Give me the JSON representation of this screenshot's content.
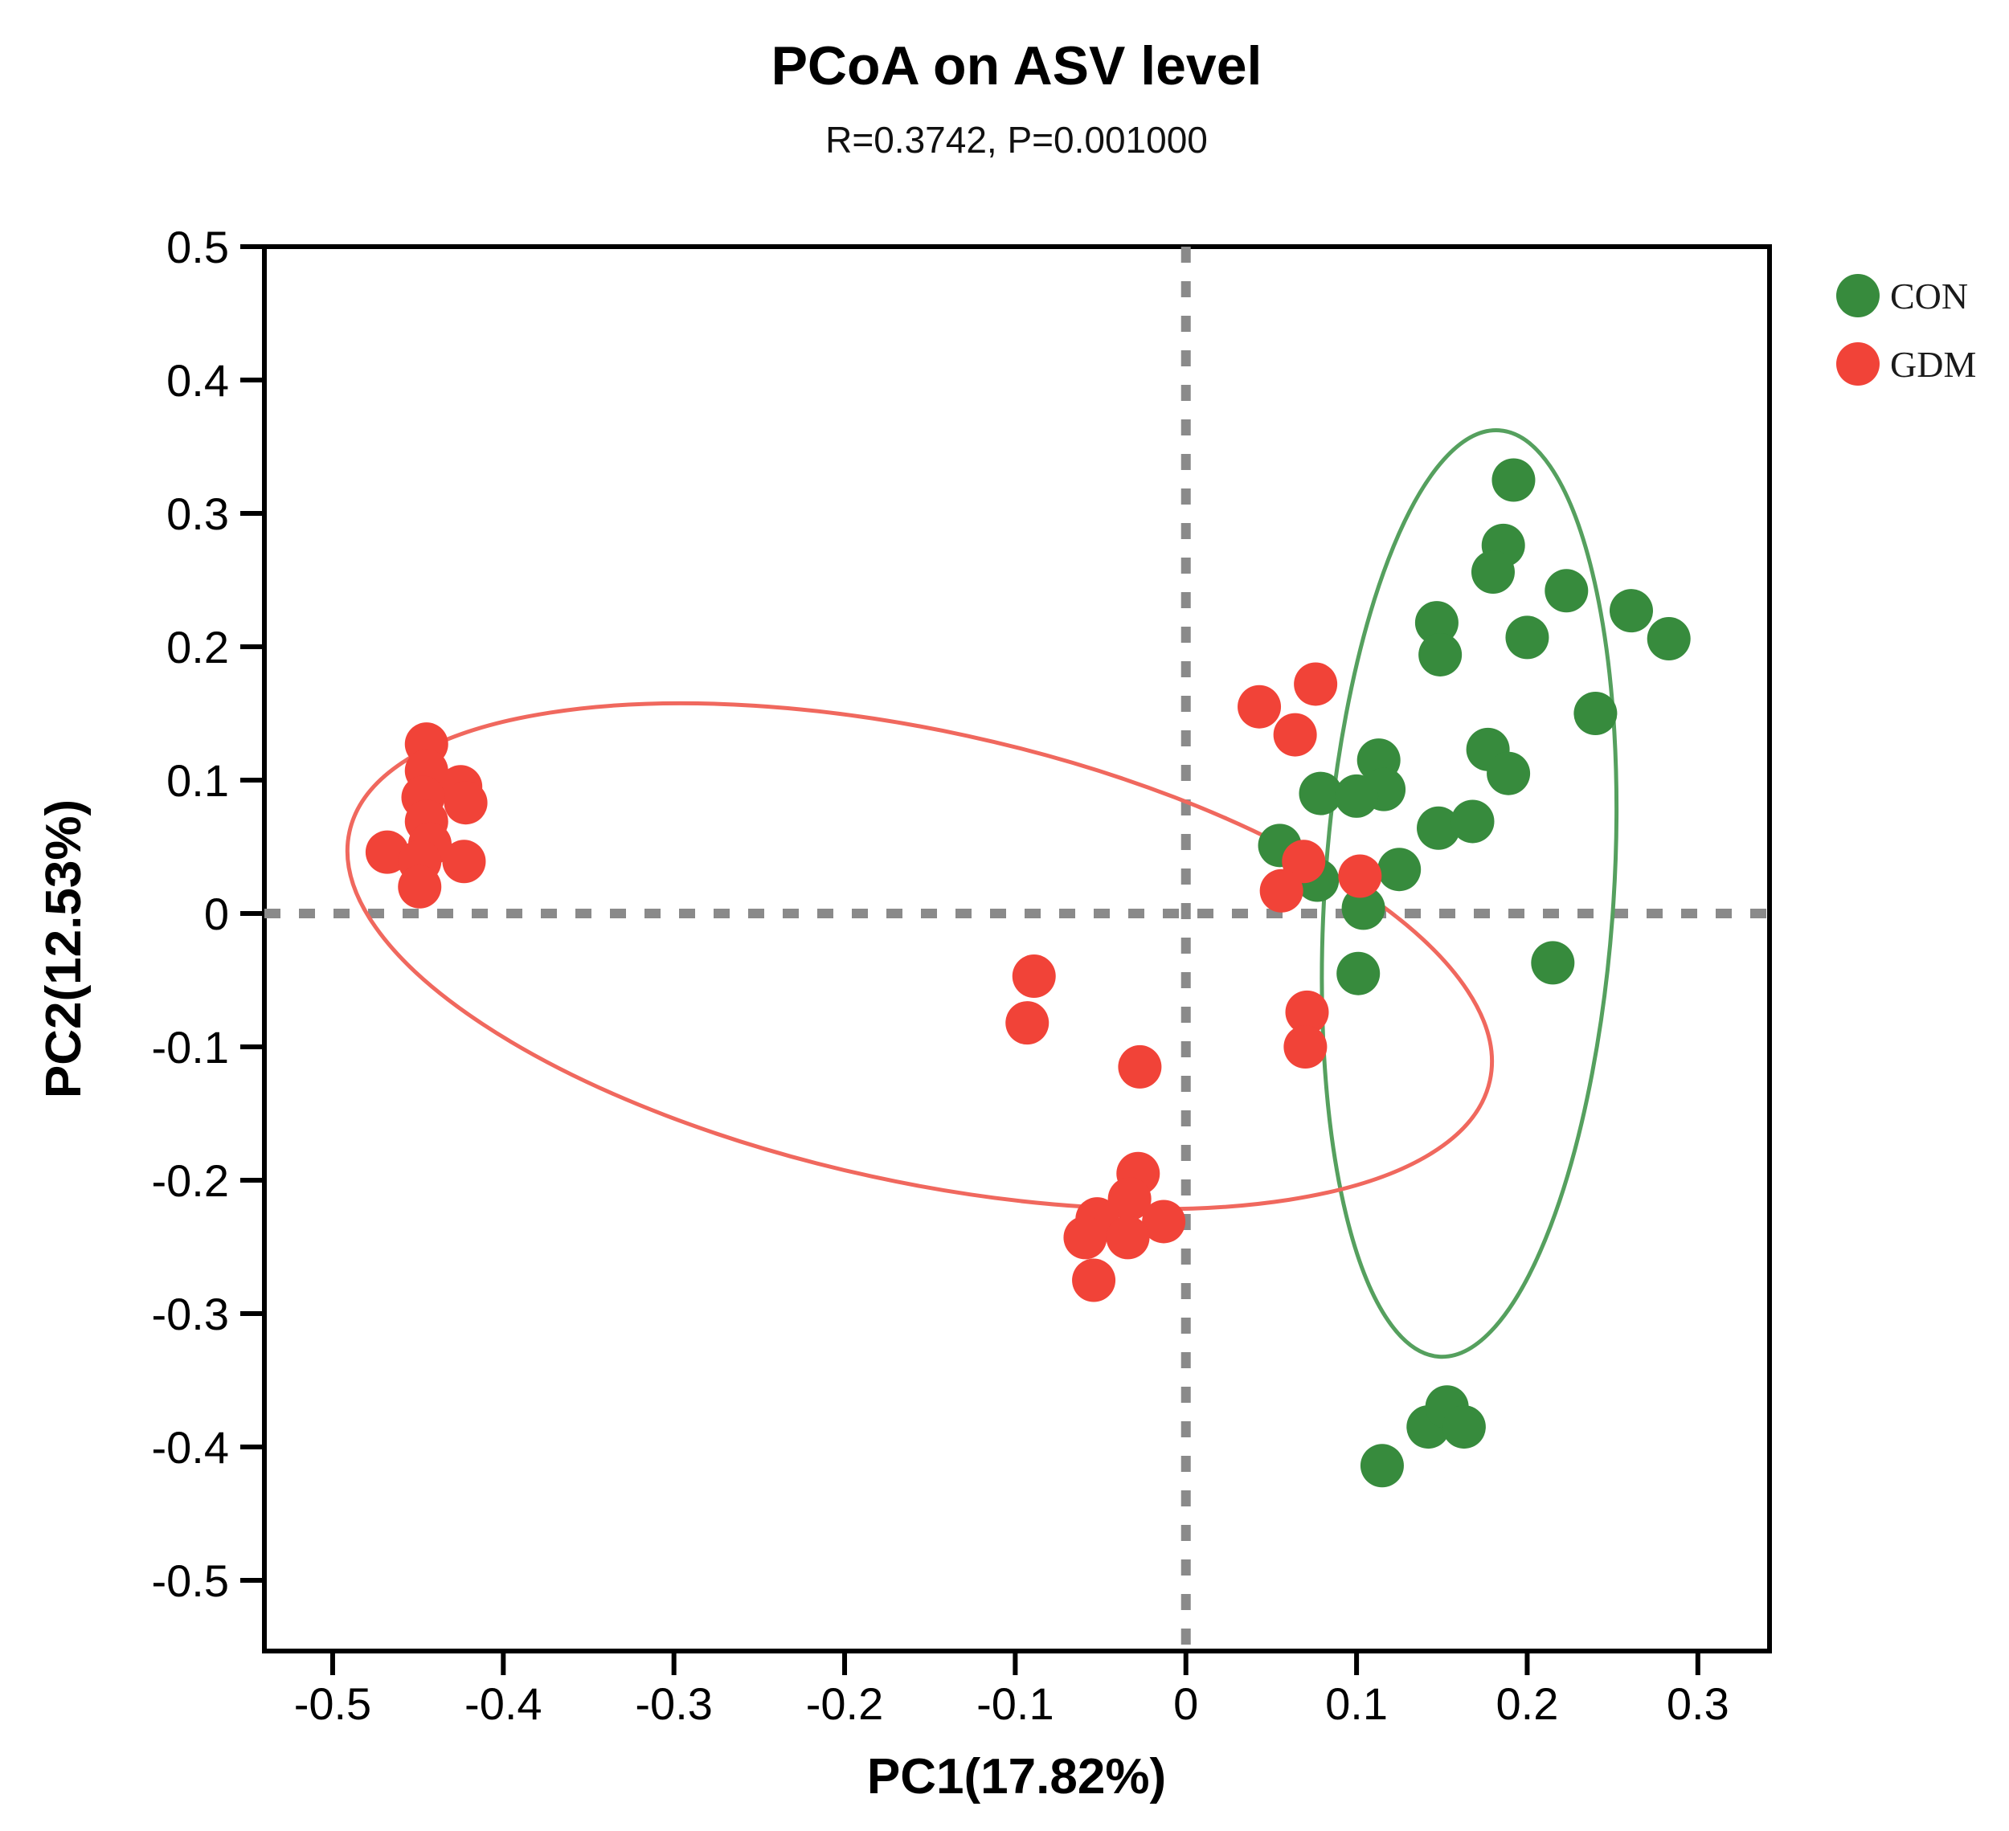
{
  "chart_data": {
    "type": "scatter",
    "title": "PCoA on ASV level",
    "subtitle": "R=0.3742, P=0.001000",
    "xlabel": "PC1(17.82%)",
    "ylabel": "PC2(12.53%)",
    "xlim": [
      -0.54,
      0.342
    ],
    "ylim": [
      -0.553,
      0.5
    ],
    "x_ticks": [
      -0.5,
      -0.4,
      -0.3,
      -0.2,
      -0.1,
      0,
      0.1,
      0.2,
      0.3
    ],
    "y_ticks": [
      0.5,
      0.4,
      0.3,
      0.2,
      0.1,
      0,
      -0.1,
      -0.2,
      -0.3,
      -0.4,
      -0.5
    ],
    "grid": false,
    "reference_lines": {
      "vertical_x": 0,
      "horizontal_y": 0,
      "color": "#8a8a8a",
      "style": "dotted"
    },
    "legend_position": "top-right-outside",
    "point_radius_px": 27,
    "series": [
      {
        "name": "CON",
        "color": "#378B3D",
        "points": [
          [
            0.192,
            0.325
          ],
          [
            0.186,
            0.276
          ],
          [
            0.18,
            0.256
          ],
          [
            0.147,
            0.218
          ],
          [
            0.149,
            0.194
          ],
          [
            0.2,
            0.207
          ],
          [
            0.223,
            0.242
          ],
          [
            0.261,
            0.227
          ],
          [
            0.283,
            0.206
          ],
          [
            0.24,
            0.15
          ],
          [
            0.177,
            0.123
          ],
          [
            0.189,
            0.105
          ],
          [
            0.113,
            0.115
          ],
          [
            0.116,
            0.093
          ],
          [
            0.079,
            0.09
          ],
          [
            0.1,
            0.088
          ],
          [
            0.148,
            0.064
          ],
          [
            0.168,
            0.069
          ],
          [
            0.055,
            0.051
          ],
          [
            0.077,
            0.025
          ],
          [
            0.125,
            0.033
          ],
          [
            0.104,
            0.004
          ],
          [
            0.101,
            -0.045
          ],
          [
            0.215,
            -0.037
          ],
          [
            0.115,
            -0.414
          ],
          [
            0.142,
            -0.385
          ],
          [
            0.153,
            -0.37
          ],
          [
            0.163,
            -0.385
          ]
        ]
      },
      {
        "name": "GDM",
        "color": "#F14338",
        "points": [
          [
            -0.445,
            0.127
          ],
          [
            -0.445,
            0.107
          ],
          [
            -0.425,
            0.095
          ],
          [
            -0.447,
            0.087
          ],
          [
            -0.422,
            0.083
          ],
          [
            -0.445,
            0.069
          ],
          [
            -0.443,
            0.052
          ],
          [
            -0.468,
            0.046
          ],
          [
            -0.449,
            0.039
          ],
          [
            -0.423,
            0.039
          ],
          [
            -0.449,
            0.02
          ],
          [
            0.043,
            0.155
          ],
          [
            0.076,
            0.172
          ],
          [
            0.064,
            0.134
          ],
          [
            0.069,
            0.039
          ],
          [
            0.056,
            0.017
          ],
          [
            0.102,
            0.028
          ],
          [
            0.071,
            -0.074
          ],
          [
            0.07,
            -0.1
          ],
          [
            -0.089,
            -0.047
          ],
          [
            -0.093,
            -0.082
          ],
          [
            -0.027,
            -0.115
          ],
          [
            -0.028,
            -0.195
          ],
          [
            -0.033,
            -0.214
          ],
          [
            -0.052,
            -0.229
          ],
          [
            -0.013,
            -0.231
          ],
          [
            -0.059,
            -0.243
          ],
          [
            -0.034,
            -0.243
          ],
          [
            -0.054,
            -0.275
          ]
        ]
      }
    ],
    "ellipses": [
      {
        "series": "CON",
        "cx": 0.166,
        "cy": 0.015,
        "rx": 0.0847,
        "ry": 0.348,
        "rotation_deg": 3.7,
        "color": "#55A05E"
      },
      {
        "series": "GDM",
        "cx": -0.156,
        "cy": -0.032,
        "rx": 0.342,
        "ry": 0.169,
        "rotation_deg": 12.3,
        "color": "#F0685E"
      }
    ],
    "legend": {
      "items": [
        {
          "label": "CON",
          "color": "#378B3D"
        },
        {
          "label": "GDM",
          "color": "#F14338"
        }
      ]
    }
  }
}
